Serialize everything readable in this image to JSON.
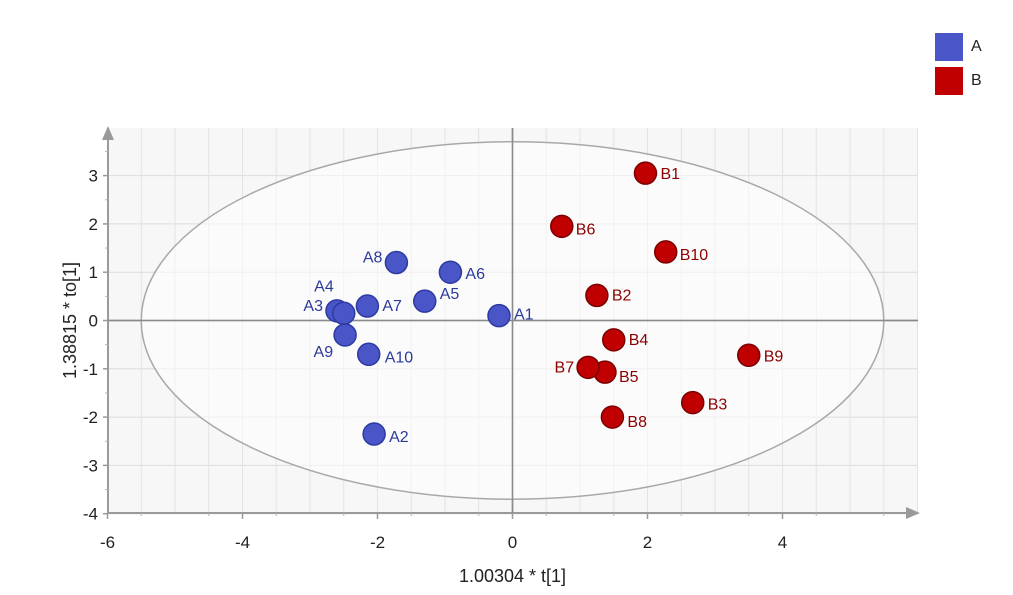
{
  "chart_data": {
    "type": "scatter",
    "title": "",
    "xlabel": "1.00304 * t[1]",
    "ylabel": "1.38815 * to[1]",
    "xlim": [
      -6,
      6
    ],
    "ylim": [
      -4,
      3.8
    ],
    "xticks": [
      -6,
      -4,
      -2,
      0,
      2,
      4
    ],
    "yticks": [
      -4,
      -3,
      -2,
      -1,
      0,
      1,
      2,
      3
    ],
    "grid": true,
    "legend_position": "top-right",
    "ellipse": {
      "cx": 0,
      "cy": 0,
      "rx": 5.5,
      "ry": 3.7
    },
    "series": [
      {
        "name": "A",
        "color": "#4a56c8",
        "points": [
          {
            "label": "A1",
            "x": -0.2,
            "y": 0.1
          },
          {
            "label": "A2",
            "x": -2.05,
            "y": -2.35
          },
          {
            "label": "A3",
            "x": -2.6,
            "y": 0.2
          },
          {
            "label": "A4",
            "x": -2.5,
            "y": 0.15
          },
          {
            "label": "A5",
            "x": -1.3,
            "y": 0.4
          },
          {
            "label": "A6",
            "x": -0.92,
            "y": 1.0
          },
          {
            "label": "A7",
            "x": -2.15,
            "y": 0.3
          },
          {
            "label": "A8",
            "x": -1.72,
            "y": 1.2
          },
          {
            "label": "A9",
            "x": -2.48,
            "y": -0.3
          },
          {
            "label": "A10",
            "x": -2.13,
            "y": -0.7
          }
        ]
      },
      {
        "name": "B",
        "color": "#c00000",
        "points": [
          {
            "label": "B1",
            "x": 1.97,
            "y": 3.05
          },
          {
            "label": "B2",
            "x": 1.25,
            "y": 0.52
          },
          {
            "label": "B3",
            "x": 2.67,
            "y": -1.7
          },
          {
            "label": "B4",
            "x": 1.5,
            "y": -0.4
          },
          {
            "label": "B5",
            "x": 1.37,
            "y": -1.07
          },
          {
            "label": "B6",
            "x": 0.73,
            "y": 1.95
          },
          {
            "label": "B7",
            "x": 1.12,
            "y": -0.97
          },
          {
            "label": "B8",
            "x": 1.48,
            "y": -2.0
          },
          {
            "label": "B9",
            "x": 3.5,
            "y": -0.72
          },
          {
            "label": "B10",
            "x": 2.27,
            "y": 1.42
          }
        ]
      }
    ]
  },
  "legend": {
    "items": [
      {
        "label": "A",
        "color": "#4a56c8"
      },
      {
        "label": "B",
        "color": "#c00000"
      }
    ]
  }
}
